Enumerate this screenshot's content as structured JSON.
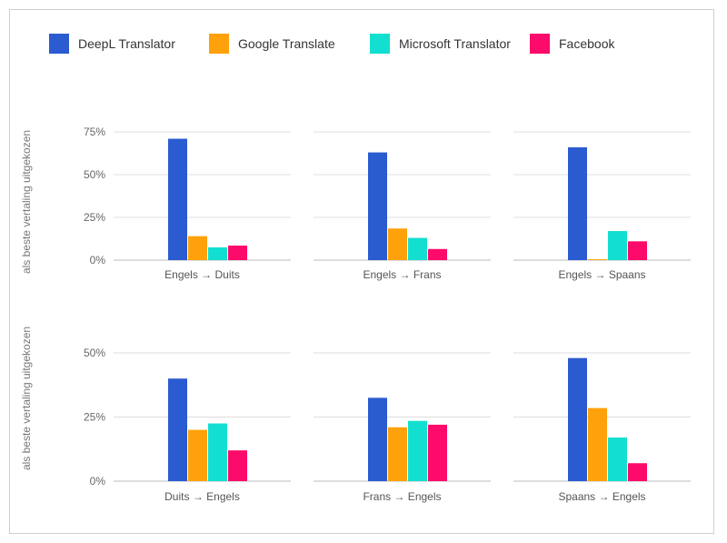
{
  "legend": [
    {
      "label": "DeepL Translator",
      "color": "#2a5bd0"
    },
    {
      "label": "Google Translate",
      "color": "#ffa10a"
    },
    {
      "label": "Microsoft Translator",
      "color": "#13dfd0"
    },
    {
      "label": "Facebook",
      "color": "#fc0b6a"
    }
  ],
  "chart_data": [
    {
      "type": "bar",
      "row_label": "als beste vertaling uitgekozen",
      "ylim": [
        0,
        75
      ],
      "yticks": [
        0,
        25,
        50,
        75
      ],
      "ytick_labels": [
        "0%",
        "25%",
        "50%",
        "75%"
      ],
      "panels": [
        {
          "category": "Engels → Duits",
          "values": [
            71,
            14,
            7.5,
            8.5
          ]
        },
        {
          "category": "Engels → Frans",
          "values": [
            63,
            18.5,
            13,
            6.5
          ]
        },
        {
          "category": "Engels → Spaans",
          "values": [
            66,
            0.5,
            17,
            11
          ]
        }
      ],
      "series": [
        "DeepL Translator",
        "Google Translate",
        "Microsoft Translator",
        "Facebook"
      ]
    },
    {
      "type": "bar",
      "row_label": "als beste vertaling uitgekozen",
      "ylim": [
        0,
        50
      ],
      "yticks": [
        0,
        25,
        50
      ],
      "ytick_labels": [
        "0%",
        "25%",
        "50%"
      ],
      "panels": [
        {
          "category": "Duits → Engels",
          "values": [
            40,
            20,
            22.5,
            12
          ]
        },
        {
          "category": "Frans → Engels",
          "values": [
            32.5,
            21,
            23.5,
            22
          ]
        },
        {
          "category": "Spaans → Engels",
          "values": [
            48,
            28.5,
            17,
            7
          ]
        }
      ],
      "series": [
        "DeepL Translator",
        "Google Translate",
        "Microsoft Translator",
        "Facebook"
      ]
    }
  ]
}
